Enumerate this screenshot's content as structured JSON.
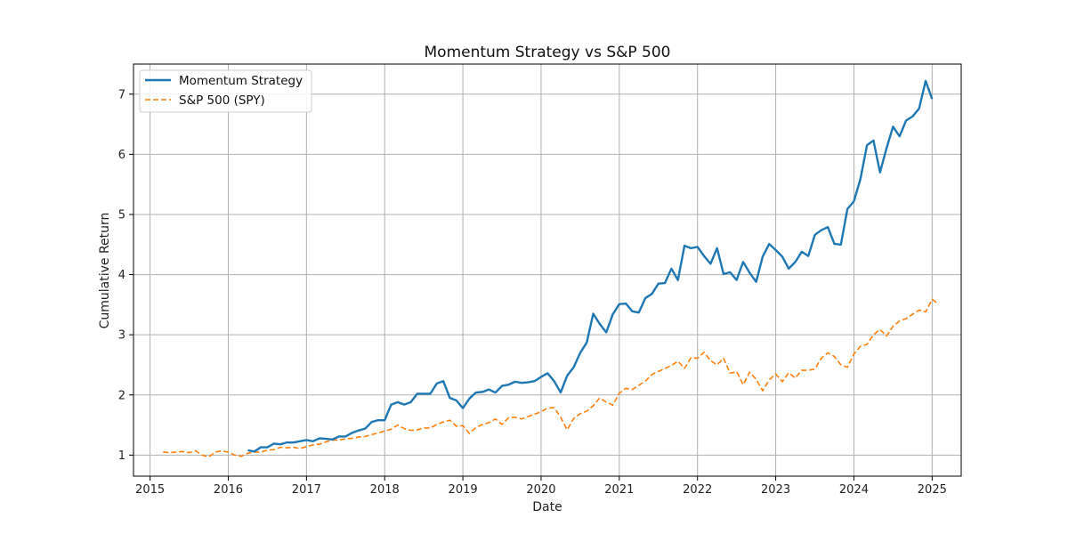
{
  "chart_data": {
    "type": "line",
    "title": "Momentum Strategy vs S&P 500",
    "xlabel": "Date",
    "ylabel": "Cumulative Return",
    "xlim": [
      "2014-10-15",
      "2025-05-15"
    ],
    "ylim": [
      0.65,
      7.5
    ],
    "x_ticks": [
      "2015",
      "2016",
      "2017",
      "2018",
      "2019",
      "2020",
      "2021",
      "2022",
      "2023",
      "2024",
      "2025"
    ],
    "y_ticks": [
      "1",
      "2",
      "3",
      "4",
      "5",
      "6",
      "7"
    ],
    "grid": true,
    "legend_position": "top-left",
    "series": [
      {
        "name": "Momentum Strategy",
        "color": "#1f77b4",
        "style": "solid",
        "start": "2016-04",
        "values": [
          1.08,
          1.06,
          1.13,
          1.13,
          1.19,
          1.18,
          1.21,
          1.21,
          1.23,
          1.25,
          1.23,
          1.28,
          1.27,
          1.26,
          1.31,
          1.31,
          1.37,
          1.41,
          1.44,
          1.55,
          1.58,
          1.58,
          1.84,
          1.88,
          1.84,
          1.88,
          2.02,
          2.02,
          2.02,
          2.19,
          2.23,
          1.95,
          1.91,
          1.78,
          1.94,
          2.04,
          2.05,
          2.09,
          2.04,
          2.15,
          2.17,
          2.22,
          2.2,
          2.21,
          2.23,
          2.3,
          2.36,
          2.23,
          2.04,
          2.32,
          2.46,
          2.7,
          2.87,
          3.35,
          3.18,
          3.04,
          3.34,
          3.51,
          3.52,
          3.39,
          3.37,
          3.61,
          3.68,
          3.85,
          3.86,
          4.1,
          3.91,
          4.48,
          4.44,
          4.46,
          4.31,
          4.18,
          4.44,
          4.01,
          4.04,
          3.91,
          4.21,
          4.03,
          3.88,
          4.3,
          4.51,
          4.41,
          4.3,
          4.1,
          4.21,
          4.38,
          4.31,
          4.66,
          4.74,
          4.79,
          4.51,
          4.5,
          5.09,
          5.22,
          5.59,
          6.15,
          6.23,
          5.7,
          6.1,
          6.46,
          6.3,
          6.56,
          6.63,
          6.76,
          7.22,
          6.92
        ]
      },
      {
        "name": "S&P 500 (SPY)",
        "color": "#ff7f0e",
        "style": "dashed",
        "start": "2015-03",
        "values": [
          1.05,
          1.04,
          1.05,
          1.06,
          1.04,
          1.07,
          1.0,
          0.97,
          1.05,
          1.07,
          1.05,
          1.0,
          0.98,
          1.03,
          1.05,
          1.05,
          1.08,
          1.09,
          1.13,
          1.12,
          1.13,
          1.11,
          1.14,
          1.17,
          1.18,
          1.22,
          1.25,
          1.25,
          1.27,
          1.28,
          1.3,
          1.31,
          1.34,
          1.37,
          1.4,
          1.43,
          1.5,
          1.44,
          1.41,
          1.42,
          1.45,
          1.45,
          1.51,
          1.55,
          1.58,
          1.48,
          1.49,
          1.36,
          1.46,
          1.51,
          1.54,
          1.6,
          1.51,
          1.62,
          1.63,
          1.6,
          1.64,
          1.68,
          1.72,
          1.78,
          1.79,
          1.63,
          1.42,
          1.61,
          1.69,
          1.73,
          1.82,
          1.95,
          1.88,
          1.83,
          2.03,
          2.11,
          2.09,
          2.16,
          2.23,
          2.34,
          2.39,
          2.44,
          2.49,
          2.56,
          2.44,
          2.62,
          2.61,
          2.71,
          2.57,
          2.5,
          2.61,
          2.36,
          2.39,
          2.17,
          2.38,
          2.26,
          2.07,
          2.25,
          2.35,
          2.22,
          2.37,
          2.28,
          2.41,
          2.41,
          2.43,
          2.61,
          2.7,
          2.64,
          2.5,
          2.46,
          2.68,
          2.81,
          2.84,
          3.0,
          3.09,
          2.98,
          3.14,
          3.23,
          3.27,
          3.34,
          3.41,
          3.38,
          3.59,
          3.51
        ]
      }
    ]
  }
}
